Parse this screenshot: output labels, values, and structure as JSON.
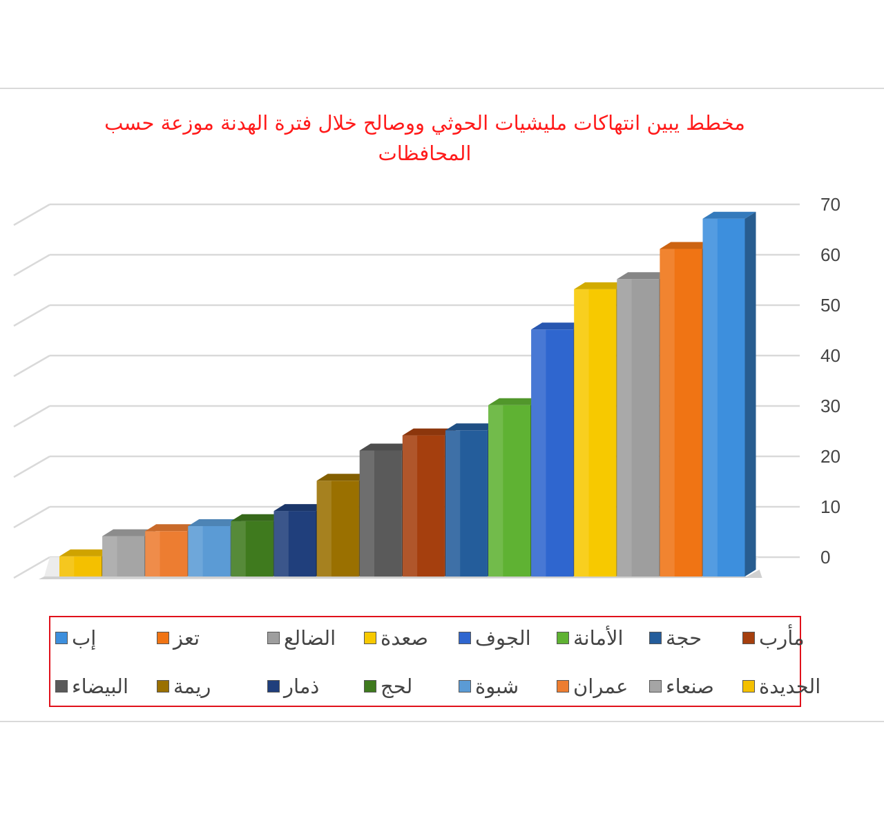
{
  "chart_data": {
    "type": "bar",
    "title": "مخطط يبين انتهاكات مليشيات الحوثي ووصالح خلال فترة الهدنة موزعة حسب المحافظات",
    "xlabel": "",
    "ylabel": "",
    "ylim": [
      0,
      70
    ],
    "yticks": [
      "0",
      "10",
      "20",
      "30",
      "40",
      "50",
      "60",
      "70"
    ],
    "grid": true,
    "legend_position": "bottom",
    "categories": [
      "الحديدة",
      "صنعاء",
      "عمران",
      "شبوة",
      "لحج",
      "ذمار",
      "ريمة",
      "البيضاء",
      "مأرب",
      "حجة",
      "الأمانة",
      "الجوف",
      "صعدة",
      "الضالع",
      "تعز",
      "إب"
    ],
    "values": [
      4,
      8,
      9,
      10,
      11,
      13,
      19,
      25,
      28,
      29,
      34,
      49,
      57,
      59,
      65,
      71
    ],
    "colors": [
      "#f4c000",
      "#a5a5a5",
      "#ed7d31",
      "#5b9bd5",
      "#3f7a1e",
      "#203f7c",
      "#9a7000",
      "#5a5a5a",
      "#a53f0e",
      "#245d9b",
      "#5fb233",
      "#2f66cf",
      "#f7c900",
      "#9e9e9e",
      "#f07414",
      "#3d8fdd"
    ]
  }
}
